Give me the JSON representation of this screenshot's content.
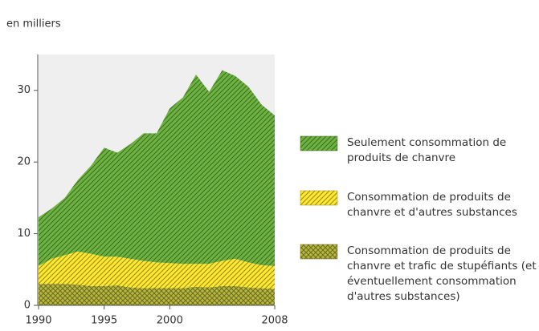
{
  "chart_data": {
    "type": "stacked-area",
    "y_label": "en milliers",
    "x": [
      1990,
      1991,
      1992,
      1993,
      1994,
      1995,
      1996,
      1997,
      1998,
      1999,
      2000,
      2001,
      2002,
      2003,
      2004,
      2005,
      2006,
      2007,
      2008
    ],
    "xlim": [
      1990,
      2008
    ],
    "xticks": [
      1990,
      1995,
      2000,
      2008
    ],
    "ylim": [
      0,
      35
    ],
    "yticks": [
      0,
      10,
      20,
      30
    ],
    "series": [
      {
        "name": "Seulement consommation de produits de chanvre",
        "color": "#6db33f",
        "hatch": "diagonal",
        "values": [
          6.8,
          7,
          8,
          10,
          12.3,
          15.2,
          14.5,
          16,
          17.8,
          18,
          21.6,
          23.2,
          26.4,
          24,
          26.6,
          25.5,
          24.5,
          22.4,
          21
        ]
      },
      {
        "name": "Consommation de produits de chanvre et d'autres substances",
        "color": "#ffe82e",
        "hatch": "diagonal",
        "values": [
          2.5,
          3.5,
          4,
          4.6,
          4.5,
          4.1,
          4,
          4,
          3.8,
          3.6,
          3.5,
          3.4,
          3.2,
          3.3,
          3.5,
          3.8,
          3.5,
          3.2,
          3.2
        ]
      },
      {
        "name": "Consommation de produits de chanvre et trafic de stupéfiants (et éventuellement consommation d'autres substances)",
        "color": "#b8b83c",
        "hatch": "cross",
        "values": [
          3,
          3,
          3,
          2.9,
          2.7,
          2.7,
          2.8,
          2.5,
          2.4,
          2.4,
          2.4,
          2.4,
          2.6,
          2.5,
          2.7,
          2.7,
          2.5,
          2.4,
          2.3
        ]
      }
    ]
  }
}
